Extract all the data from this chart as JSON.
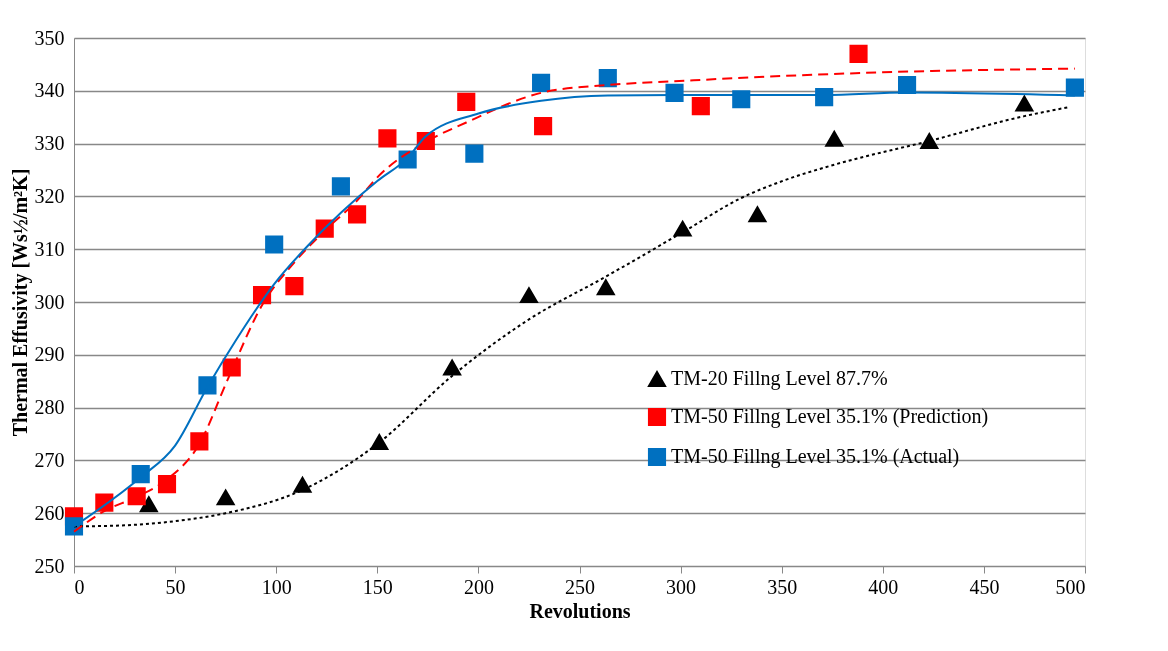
{
  "chart_data": {
    "type": "scatter",
    "xlabel": "Revolutions",
    "ylabel": "Thermal Effusivity [Ws½/m²K]",
    "xlim": [
      0,
      500
    ],
    "xticks": [
      0,
      50,
      100,
      150,
      200,
      250,
      300,
      350,
      400,
      450,
      500
    ],
    "ylim": [
      250,
      350
    ],
    "yticks": [
      250,
      260,
      270,
      280,
      290,
      300,
      310,
      320,
      330,
      340,
      350
    ],
    "grid": "y",
    "legend": "bottom right",
    "series": [
      {
        "type": "line",
        "color": "#000000",
        "line_style": "dotted",
        "x": [
          0,
          25,
          50,
          75,
          113,
          150,
          187,
          225,
          263,
          301,
          330,
          351,
          376,
          423,
          470,
          492
        ],
        "values": [
          257.5,
          257.7,
          258.5,
          260.0,
          264.4,
          273.1,
          286.0,
          296.7,
          304.8,
          313.2,
          319.7,
          323.0,
          326.0,
          330.5,
          335.2,
          336.9
        ]
      },
      {
        "type": "line",
        "color": "#ff0000",
        "line_style": "dashed",
        "x": [
          0,
          15,
          31,
          46,
          62,
          76,
          93,
          109,
          124,
          140,
          150,
          174,
          194,
          232,
          264,
          297,
          350,
          400,
          495
        ],
        "values": [
          256.5,
          260.4,
          263.1,
          266.4,
          273.1,
          285.3,
          299.4,
          307.5,
          313.5,
          319.2,
          323.6,
          330.3,
          334.0,
          339.7,
          341.1,
          341.8,
          342.8,
          343.5,
          344.2
        ]
      },
      {
        "type": "line",
        "color": "#0070c0",
        "line_style": "solid",
        "x": [
          0,
          33,
          50,
          66,
          80,
          99,
          116,
          132,
          150,
          165,
          174,
          200,
          231,
          264,
          297,
          330,
          371,
          412,
          495
        ],
        "values": [
          257.5,
          266.8,
          272.8,
          283.9,
          292.7,
          303.4,
          310.8,
          316.9,
          322.9,
          327.3,
          331.4,
          335.7,
          338.1,
          339.1,
          339.2,
          339.2,
          339.2,
          339.7,
          339.1
        ]
      },
      {
        "name": "TM-20 Fillng Level 87.7%",
        "color": "#000000",
        "marker": "triangle",
        "x": [
          37,
          75,
          113,
          151,
          187,
          225,
          263,
          301,
          338,
          376,
          423,
          470
        ],
        "values": [
          261.7,
          263.0,
          265.4,
          273.5,
          287.6,
          301.3,
          302.8,
          313.9,
          316.6,
          330.9,
          330.5,
          337.6
        ]
      },
      {
        "name": "TM-50 Fillng Level 35.1% (Prediction)",
        "color": "#ff0000",
        "marker": "square",
        "x": [
          0,
          15,
          31,
          46,
          62,
          78,
          93,
          109,
          124,
          140,
          155,
          174,
          194,
          232,
          310,
          388
        ],
        "values": [
          259.4,
          262.0,
          263.2,
          265.5,
          273.6,
          287.6,
          301.3,
          303.0,
          313.9,
          316.6,
          331.0,
          330.5,
          337.9,
          333.3,
          337.1,
          347.0
        ]
      },
      {
        "name": "TM-50 Fillng Level 35.1% (Actual)",
        "color": "#0070c0",
        "marker": "square",
        "x": [
          0,
          33,
          66,
          99,
          132,
          165,
          198,
          231,
          264,
          297,
          330,
          371,
          412,
          495
        ],
        "values": [
          257.5,
          267.4,
          284.2,
          310.9,
          321.9,
          327.0,
          328.1,
          341.5,
          342.4,
          339.6,
          338.4,
          338.8,
          341.1,
          340.6
        ]
      }
    ]
  }
}
